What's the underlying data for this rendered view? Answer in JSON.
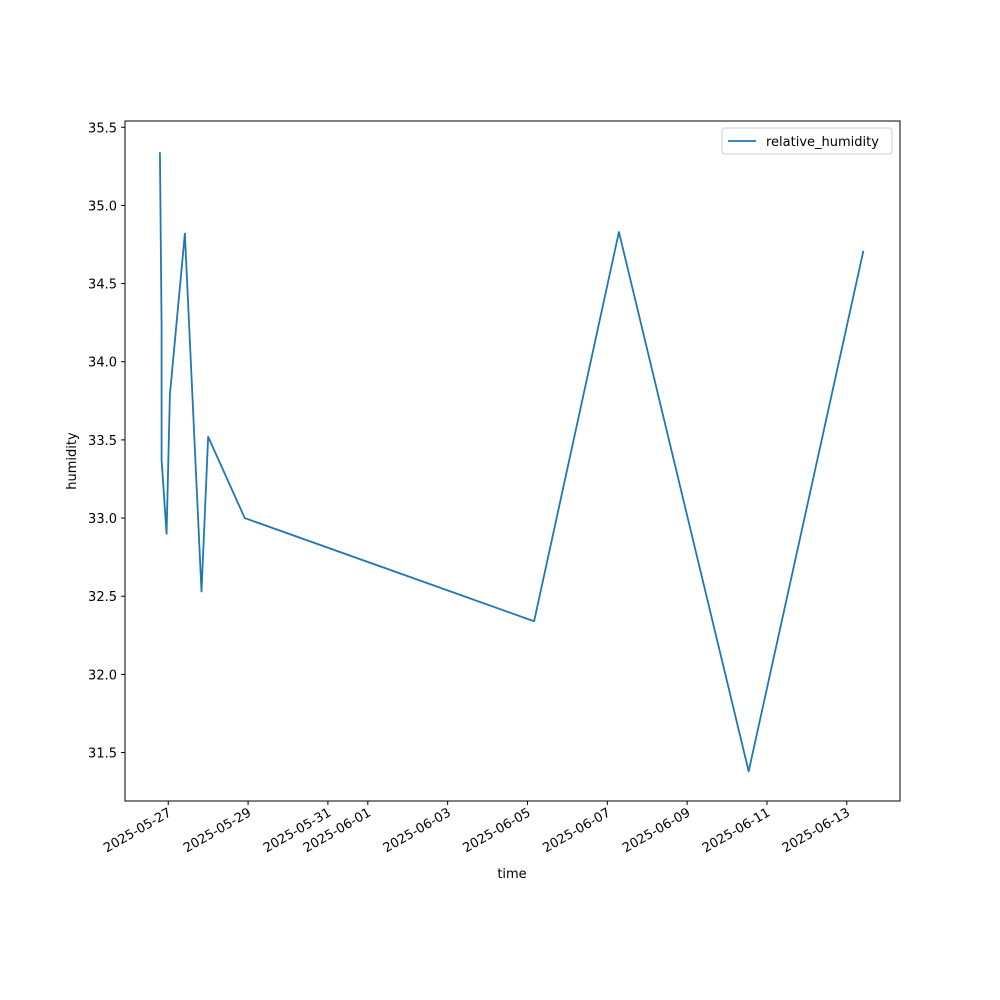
{
  "chart_data": {
    "type": "line",
    "xlabel": "time",
    "ylabel": "humidity",
    "x": [
      "2025-05-26T19:00",
      "2025-05-26T20:00",
      "2025-05-26T20:00",
      "2025-05-26T23:00",
      "2025-05-27T01:00",
      "2025-05-27T10:00",
      "2025-05-27T20:00",
      "2025-05-28T00:00",
      "2025-05-28T22:00",
      "2025-06-05T04:00",
      "2025-06-07T07:00",
      "2025-06-10T13:00",
      "2025-06-13T10:00"
    ],
    "series": [
      {
        "name": "relative_humidity",
        "color": "#1f77b4",
        "values": [
          35.34,
          34.22,
          33.37,
          32.9,
          33.79,
          34.82,
          32.53,
          33.52,
          33.0,
          32.34,
          34.83,
          31.38,
          34.71
        ]
      }
    ],
    "xlim": [
      "2025-05-25T22:00",
      "2025-06-14T08:00"
    ],
    "xticks": [
      "2025-05-27",
      "2025-05-29",
      "2025-05-31",
      "2025-06-01",
      "2025-06-03",
      "2025-06-05",
      "2025-06-07",
      "2025-06-09",
      "2025-06-11",
      "2025-06-13"
    ],
    "ylim": [
      31.19,
      35.54
    ],
    "yticks": [
      31.5,
      {
        "value": 32,
        "label": "32.0"
      },
      32.5,
      {
        "value": 33,
        "label": "33.0"
      },
      33.5,
      {
        "value": 34,
        "label": "34.0"
      },
      34.5,
      {
        "value": 35,
        "label": "35.0"
      },
      35.5
    ],
    "grid": false,
    "legend": "upper right"
  }
}
